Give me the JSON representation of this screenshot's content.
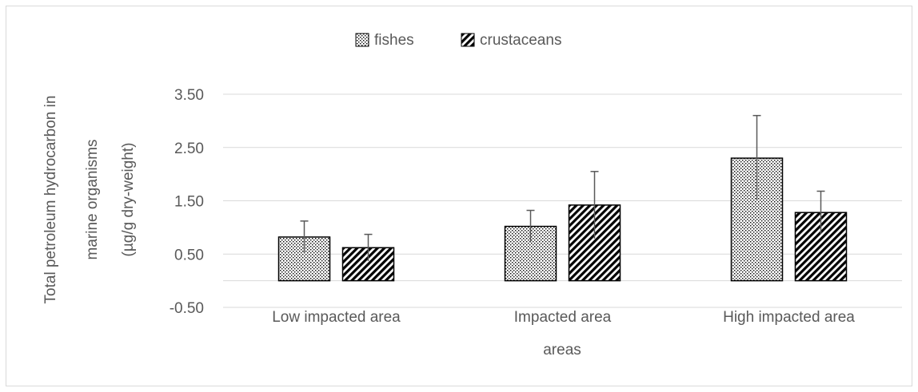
{
  "chart_data": {
    "type": "bar",
    "title": "",
    "xlabel": "areas",
    "ylabel_lines": [
      "Total petroleum hydrocarbon in",
      "marine organisms",
      "(µg/g dry-weight)"
    ],
    "categories": [
      "Low impacted area",
      "Impacted area",
      "High impacted area"
    ],
    "series": [
      {
        "name": "fishes",
        "pattern": "dots",
        "values": [
          0.82,
          1.02,
          2.3
        ],
        "error_plus": [
          0.3,
          0.3,
          0.8
        ],
        "error_minus": [
          0.3,
          0.3,
          0.8
        ]
      },
      {
        "name": "crustaceans",
        "pattern": "diagonal-stripes",
        "values": [
          0.62,
          1.42,
          1.28
        ],
        "error_plus": [
          0.25,
          0.63,
          0.4
        ],
        "error_minus": [
          0.25,
          0.63,
          0.4
        ]
      }
    ],
    "yticks": [
      "3.50",
      "2.50",
      "1.50",
      "0.50",
      "-0.50"
    ],
    "ytick_values": [
      3.5,
      2.5,
      1.5,
      0.5,
      -0.5
    ],
    "ylim": [
      -0.5,
      3.5
    ],
    "grid": true,
    "legend_position": "top"
  }
}
